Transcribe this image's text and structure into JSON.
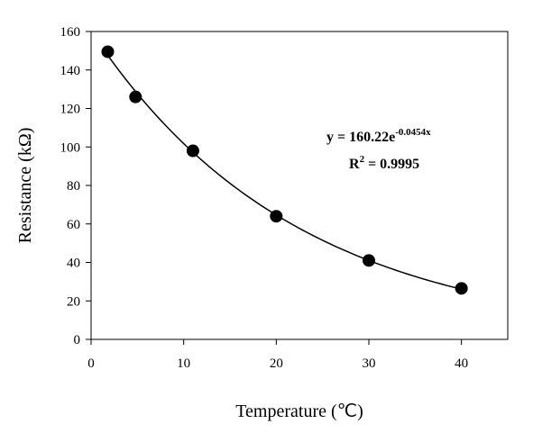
{
  "chart_data": {
    "type": "scatter",
    "title": "",
    "xlabel": "Temperature (℃)",
    "ylabel": "Resistance (kΩ)",
    "xlim": [
      0,
      45
    ],
    "ylim": [
      0,
      160
    ],
    "x_ticks": [
      "0",
      "10",
      "20",
      "30",
      "40"
    ],
    "y_ticks": [
      "0",
      "20",
      "40",
      "60",
      "80",
      "100",
      "120",
      "140",
      "160"
    ],
    "grid": false,
    "series": [
      {
        "x": [
          1.8,
          4.8,
          11,
          20,
          30,
          40
        ],
        "y": [
          149.5,
          126,
          98,
          64,
          41,
          26.5
        ],
        "marker": "filled-circle",
        "color": "#000000"
      }
    ],
    "trendline": {
      "type": "exponential",
      "a": 160.22,
      "b": -0.0454,
      "x_range": [
        1.8,
        40
      ],
      "color": "#000000"
    },
    "annotation": {
      "equation_prefix": "y = 160.22e",
      "equation_exponent": "-0.0454x",
      "r2_prefix": "R",
      "r2_exponent": "2",
      "r2_suffix": " = 0.9995"
    }
  }
}
